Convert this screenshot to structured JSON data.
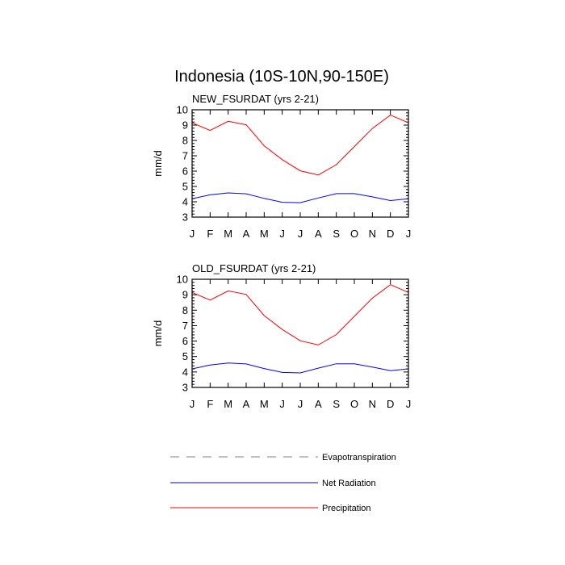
{
  "title": "Indonesia (10S-10N,90-150E)",
  "colors": {
    "evapotranspiration": "#808080",
    "net_radiation": "#0000ff",
    "precipitation": "#ff0000",
    "axis": "#000000"
  },
  "legend": [
    {
      "key": "evapotranspiration",
      "label": "Evapotranspiration",
      "style": "dashed"
    },
    {
      "key": "net_radiation",
      "label": "Net Radiation",
      "style": "solid"
    },
    {
      "key": "precipitation",
      "label": "Precipitation",
      "style": "solid"
    }
  ],
  "chart_data": [
    {
      "type": "line",
      "title": "NEW_FSURDAT (yrs 2-21)",
      "xlabel": "",
      "ylabel": "mm/d",
      "ylim": [
        3,
        10
      ],
      "yticks": [
        3,
        4,
        5,
        6,
        7,
        8,
        9,
        10
      ],
      "categories": [
        "J",
        "F",
        "M",
        "A",
        "M",
        "J",
        "J",
        "A",
        "S",
        "O",
        "N",
        "D",
        "J"
      ],
      "series": [
        {
          "name": "Net Radiation",
          "key": "net_radiation",
          "values": [
            4.2,
            4.45,
            4.58,
            4.52,
            4.22,
            3.97,
            3.94,
            4.25,
            4.53,
            4.53,
            4.32,
            4.08,
            4.2
          ]
        },
        {
          "name": "Precipitation",
          "key": "precipitation",
          "values": [
            9.15,
            8.65,
            9.25,
            9.02,
            7.65,
            6.75,
            6.02,
            5.75,
            6.42,
            7.6,
            8.78,
            9.65,
            9.15
          ]
        }
      ]
    },
    {
      "type": "line",
      "title": "OLD_FSURDAT (yrs 2-21)",
      "xlabel": "",
      "ylabel": "mm/d",
      "ylim": [
        3,
        10
      ],
      "yticks": [
        3,
        4,
        5,
        6,
        7,
        8,
        9,
        10
      ],
      "categories": [
        "J",
        "F",
        "M",
        "A",
        "M",
        "J",
        "J",
        "A",
        "S",
        "O",
        "N",
        "D",
        "J"
      ],
      "series": [
        {
          "name": "Net Radiation",
          "key": "net_radiation",
          "values": [
            4.2,
            4.45,
            4.58,
            4.52,
            4.22,
            3.97,
            3.94,
            4.25,
            4.53,
            4.53,
            4.32,
            4.08,
            4.2
          ]
        },
        {
          "name": "Precipitation",
          "key": "precipitation",
          "values": [
            9.15,
            8.65,
            9.25,
            9.02,
            7.65,
            6.75,
            6.02,
            5.75,
            6.42,
            7.6,
            8.78,
            9.65,
            9.15
          ]
        }
      ]
    }
  ]
}
